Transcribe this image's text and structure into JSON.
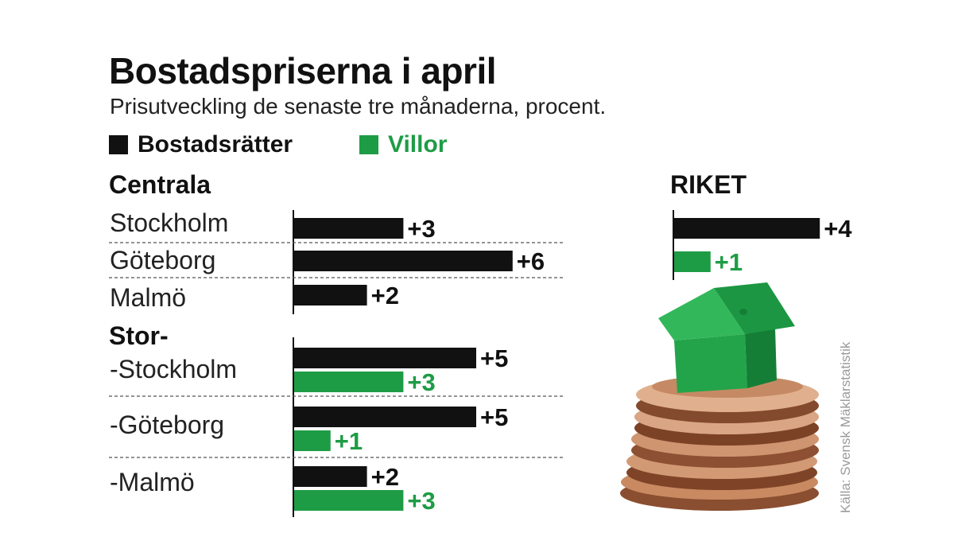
{
  "chart_data": {
    "type": "bar",
    "orientation": "horizontal",
    "title": "Bostadspriserna i april",
    "subtitle": "Prisutveckling de senaste tre månaderna, procent.",
    "legend": [
      {
        "name": "Bostadsrätter",
        "color": "#111111"
      },
      {
        "name": "Villor",
        "color": "#1e9c45"
      }
    ],
    "source": "Källa: Svensk Mäklarstatistik",
    "groups": [
      {
        "label": "Centrala",
        "categories": [
          {
            "label": "Stockholm",
            "bostadsratter": 3,
            "bostadsratter_label": "+3"
          },
          {
            "label": "Göteborg",
            "bostadsratter": 6,
            "bostadsratter_label": "+6"
          },
          {
            "label": "Malmö",
            "bostadsratter": 2,
            "bostadsratter_label": "+2"
          }
        ]
      },
      {
        "label": "Stor-",
        "categories": [
          {
            "label": "-Stockholm",
            "bostadsratter": 5,
            "bostadsratter_label": "+5",
            "villor": 3,
            "villor_label": "+3"
          },
          {
            "label": "-Göteborg",
            "bostadsratter": 5,
            "bostadsratter_label": "+5",
            "villor": 1,
            "villor_label": "+1"
          },
          {
            "label": "-Malmö",
            "bostadsratter": 2,
            "bostadsratter_label": "+2",
            "villor": 3,
            "villor_label": "+3"
          }
        ]
      }
    ],
    "riket": {
      "label": "RIKET",
      "bostadsratter": 4,
      "bostadsratter_label": "+4",
      "villor": 1,
      "villor_label": "+1"
    }
  },
  "illustration": {
    "name": "house-on-coins-icon",
    "house_color": "#1e9c45",
    "coin_color": "#b06a45"
  }
}
